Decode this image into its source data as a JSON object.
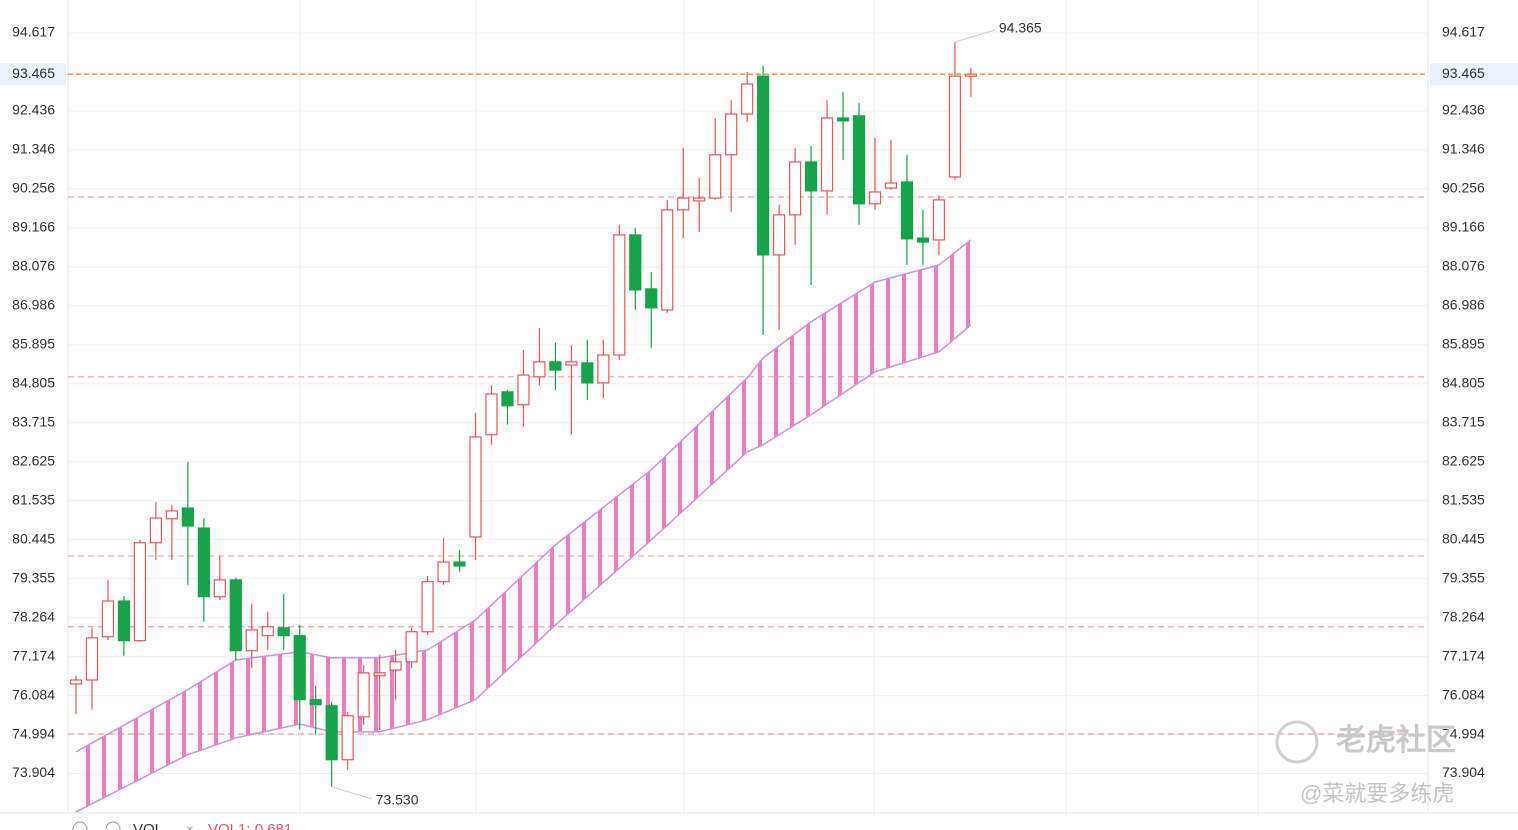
{
  "chart_data": {
    "type": "candlestick",
    "open": [
      76.41,
      76.52,
      77.73,
      78.73,
      77.62,
      80.36,
      81.03,
      81.33,
      80.77,
      78.85,
      79.32,
      77.34,
      77.76,
      77.98,
      77.76,
      75.97,
      75.8,
      74.29,
      75.49,
      76.64,
      76.8,
      77.03,
      77.87,
      79.27,
      79.82,
      80.52,
      83.38,
      84.58,
      84.22,
      85.0,
      85.42,
      85.33,
      85.39,
      84.83,
      85.61,
      88.97,
      87.46,
      86.87,
      89.67,
      89.92,
      90.0,
      91.21,
      92.35,
      93.41,
      88.41,
      89.53,
      91.01,
      90.2,
      92.24,
      92.3,
      89.84,
      90.28,
      90.45,
      88.88,
      88.83,
      90.59,
      93.41
    ],
    "high": [
      76.64,
      77.98,
      79.32,
      78.87,
      80.44,
      81.5,
      81.42,
      82.62,
      81.05,
      79.99,
      79.38,
      78.65,
      78.43,
      78.93,
      78.06,
      76.36,
      75.91,
      75.63,
      76.94,
      77.22,
      77.36,
      77.98,
      79.43,
      80.5,
      80.16,
      83.99,
      84.77,
      84.63,
      85.75,
      86.37,
      85.95,
      85.89,
      86.03,
      86.03,
      89.25,
      89.16,
      87.93,
      89.95,
      91.4,
      90.56,
      92.24,
      92.74,
      93.53,
      93.69,
      89.81,
      91.4,
      91.46,
      92.74,
      92.97,
      92.66,
      91.68,
      91.63,
      91.21,
      89.67,
      90.06,
      94.365,
      93.64
    ],
    "low": [
      75.57,
      75.69,
      77.64,
      77.2,
      77.59,
      79.88,
      79.88,
      79.18,
      78.15,
      78.76,
      77.08,
      76.86,
      77.36,
      77.36,
      75.13,
      74.99,
      73.53,
      74.01,
      75.27,
      75.13,
      75.97,
      76.86,
      77.78,
      79.18,
      79.55,
      79.88,
      83.1,
      83.66,
      83.6,
      84.77,
      84.63,
      83.38,
      84.35,
      84.41,
      85.47,
      86.87,
      85.81,
      86.79,
      88.88,
      89.05,
      89.95,
      89.61,
      92.13,
      86.17,
      86.31,
      88.69,
      87.57,
      89.53,
      91.07,
      89.25,
      89.67,
      90.23,
      88.13,
      88.13,
      88.41,
      90.51,
      92.83
    ],
    "close": [
      76.52,
      77.7,
      78.73,
      77.62,
      80.36,
      81.05,
      81.25,
      80.83,
      78.85,
      79.32,
      77.34,
      77.92,
      78.01,
      77.76,
      75.97,
      75.83,
      74.29,
      75.52,
      76.72,
      76.72,
      77.03,
      77.87,
      79.27,
      79.82,
      79.71,
      83.32,
      84.52,
      84.19,
      85.05,
      85.42,
      85.19,
      85.42,
      84.83,
      85.61,
      88.97,
      87.43,
      86.93,
      89.67,
      90.0,
      90.0,
      91.21,
      92.35,
      93.19,
      88.41,
      89.53,
      91.01,
      90.2,
      92.24,
      92.16,
      89.84,
      90.17,
      90.42,
      88.86,
      88.77,
      89.95,
      93.41,
      93.465
    ],
    "up_color": "#e8575a",
    "down_color": "#17a34a",
    "cloud": {
      "x": [
        0,
        7,
        10,
        14,
        16,
        19,
        22,
        25,
        30,
        36,
        42,
        43,
        46,
        50,
        54,
        56
      ],
      "upper": [
        74.51,
        76.25,
        77.08,
        77.31,
        77.14,
        77.14,
        77.36,
        78.2,
        80.3,
        82.4,
        84.97,
        85.53,
        86.54,
        87.65,
        88.13,
        88.83
      ],
      "lower": [
        72.83,
        74.43,
        74.9,
        75.29,
        75.07,
        75.07,
        75.41,
        75.97,
        78.06,
        80.44,
        82.9,
        83.1,
        83.94,
        85.14,
        85.7,
        86.45
      ],
      "line_color": "#d58ee0",
      "fill_color": "#f07dbf"
    },
    "levels": [
      90.03,
      85.0,
      79.99,
      78.01,
      75.01
    ],
    "level_color": "#f3a0a0",
    "last_price": {
      "value": 93.465,
      "label": "93.465"
    },
    "last_price_color": "#f08a3a",
    "max_label": "94.365",
    "min_label": "73.530",
    "ylim": [
      72.8,
      95.54
    ],
    "yticks": [
      94.617,
      92.436,
      91.346,
      90.256,
      89.166,
      88.076,
      86.986,
      85.895,
      84.805,
      83.715,
      82.625,
      81.535,
      80.445,
      79.355,
      78.264,
      77.174,
      76.084,
      74.994,
      73.904
    ],
    "grid": true,
    "indicator": {
      "name": "VOL",
      "value_label": "VOL1: 0.681"
    }
  },
  "watermark": {
    "brand": "老虎社区",
    "user": "@菜就要多练虎"
  }
}
